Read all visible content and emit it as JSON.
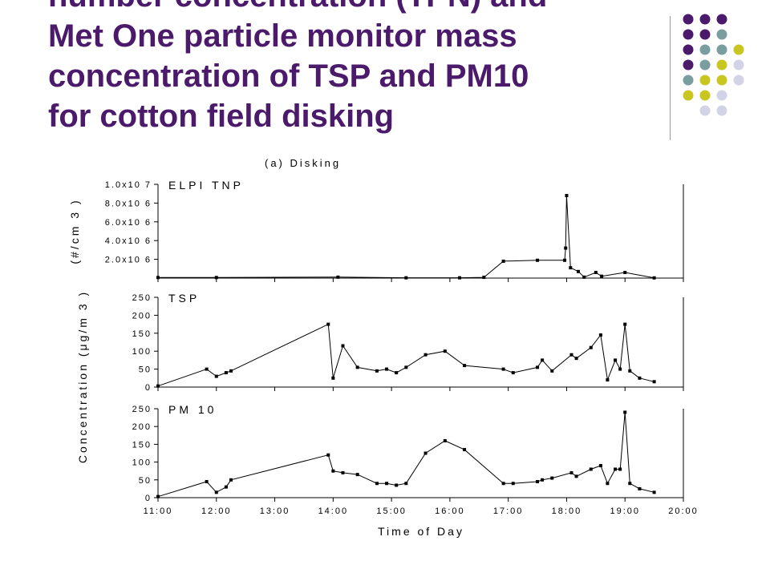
{
  "slide": {
    "title_lines": [
      "number concentration (TPN) and",
      "Met One particle monitor mass",
      "concentration of TSP and PM10",
      "for cotton field disking"
    ],
    "title_color": "#4b1a6b",
    "dot_colors": [
      "#4b1a6b",
      "#7a9e9f",
      "#c9c621",
      "#d3d3e8"
    ]
  },
  "chart_data": {
    "type": "line",
    "caption": "(a) Disking",
    "xlabel": "Time of Day",
    "x_ticks": [
      "11:00",
      "12:00",
      "13:00",
      "14:00",
      "15:00",
      "16:00",
      "17:00",
      "18:00",
      "19:00",
      "20:00"
    ],
    "panels": [
      {
        "label": "ELPI TNP",
        "ylabel": "(#/cm 3 )",
        "y_ticks": [
          "2.0x10 6",
          "4.0x10 6",
          "6.0x10 6",
          "8.0x10 6",
          "1.0x10 7"
        ],
        "ylim": [
          0,
          10000000
        ],
        "x": [
          "11:00",
          "12:00",
          "14:05",
          "15:15",
          "16:10",
          "16:35",
          "16:55",
          "17:30",
          "17:58",
          "17:59",
          "18:00",
          "18:04",
          "18:12",
          "18:18",
          "18:30",
          "18:36",
          "19:00",
          "19:30"
        ],
        "values": [
          60000,
          60000,
          100000,
          30000,
          30000,
          80000,
          1800000,
          1900000,
          1900000,
          3200000,
          8800000,
          1100000,
          700000,
          100000,
          600000,
          200000,
          600000,
          20000
        ]
      },
      {
        "label": "TSP",
        "ylabel": "",
        "y_ticks": [
          "0",
          "50",
          "100",
          "150",
          "200",
          "250"
        ],
        "ylim": [
          0,
          250
        ],
        "x": [
          "11:00",
          "11:50",
          "12:00",
          "12:10",
          "12:15",
          "13:55",
          "14:00",
          "14:10",
          "14:25",
          "14:45",
          "14:55",
          "15:05",
          "15:15",
          "15:35",
          "15:55",
          "16:15",
          "16:55",
          "17:05",
          "17:30",
          "17:35",
          "17:45",
          "18:05",
          "18:10",
          "18:25",
          "18:35",
          "18:42",
          "18:50",
          "18:55",
          "19:00",
          "19:05",
          "19:15",
          "19:30"
        ],
        "values": [
          3,
          50,
          30,
          40,
          45,
          175,
          25,
          115,
          55,
          45,
          50,
          40,
          55,
          90,
          100,
          60,
          50,
          40,
          55,
          75,
          45,
          90,
          80,
          110,
          145,
          20,
          75,
          50,
          175,
          45,
          25,
          15
        ]
      },
      {
        "label": "PM 10",
        "ylabel": "Concentration (μg/m 3 )",
        "y_ticks": [
          "0",
          "50",
          "100",
          "150",
          "200",
          "250"
        ],
        "ylim": [
          0,
          250
        ],
        "x": [
          "11:00",
          "11:50",
          "12:00",
          "12:10",
          "12:15",
          "13:55",
          "14:00",
          "14:10",
          "14:25",
          "14:45",
          "14:55",
          "15:05",
          "15:15",
          "15:35",
          "15:55",
          "16:15",
          "16:55",
          "17:05",
          "17:30",
          "17:35",
          "17:45",
          "18:05",
          "18:10",
          "18:25",
          "18:35",
          "18:42",
          "18:50",
          "18:55",
          "19:00",
          "19:05",
          "19:15",
          "19:30"
        ],
        "values": [
          3,
          45,
          15,
          30,
          50,
          120,
          75,
          70,
          65,
          40,
          40,
          35,
          40,
          125,
          160,
          135,
          40,
          40,
          45,
          50,
          55,
          70,
          60,
          80,
          90,
          40,
          80,
          80,
          240,
          40,
          25,
          15
        ]
      }
    ]
  }
}
